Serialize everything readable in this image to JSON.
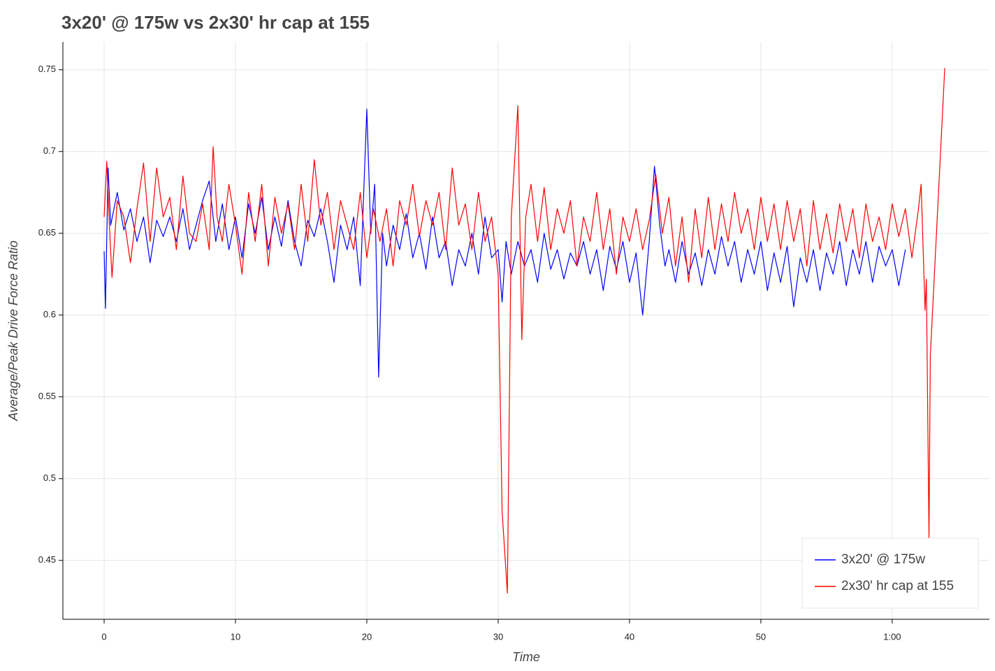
{
  "chart_data": {
    "type": "line",
    "title": "3x20' @ 175w vs 2x30' hr cap at 155",
    "x_label": "Time",
    "y_label": "Average/Peak Drive Force Ratio",
    "xlim": [
      -3.14,
      67.4
    ],
    "ylim": [
      0.414,
      0.767
    ],
    "xticks": [
      0,
      10,
      20,
      30,
      40,
      50,
      {
        "value": 60,
        "label": "1:00"
      }
    ],
    "yticks": [
      0.45,
      0.5,
      0.55,
      0.6,
      0.65,
      0.7,
      0.75
    ],
    "grid": true,
    "legend": "bottom-right",
    "series": [
      {
        "name": "3x20' @ 175w",
        "color": "#0000ff",
        "x": [
          0,
          0.1,
          0.3,
          0.5,
          1,
          1.5,
          2,
          2.5,
          3,
          3.5,
          4,
          4.5,
          5,
          5.5,
          6,
          6.5,
          7,
          7.5,
          8,
          8.5,
          9,
          9.5,
          10,
          10.5,
          11,
          11.5,
          12,
          12.5,
          13,
          13.5,
          14,
          14.5,
          15,
          15.5,
          16,
          16.5,
          17,
          17.5,
          18,
          18.5,
          19,
          19.5,
          20,
          20.3,
          20.6,
          20.9,
          21.2,
          21.5,
          22,
          22.5,
          23,
          23.5,
          24,
          24.5,
          25,
          25.5,
          26,
          26.5,
          27,
          27.5,
          28,
          28.5,
          29,
          29.5,
          30,
          30.3,
          30.6,
          31,
          31.5,
          32,
          32.5,
          33,
          33.5,
          34,
          34.5,
          35,
          35.5,
          36,
          36.5,
          37,
          37.5,
          38,
          38.5,
          39,
          39.5,
          40,
          40.5,
          41,
          41.5,
          41.9,
          42.3,
          42.7,
          43,
          43.5,
          44,
          44.5,
          45,
          45.5,
          46,
          46.5,
          47,
          47.5,
          48,
          48.5,
          49,
          49.5,
          50,
          50.5,
          51,
          51.5,
          52,
          52.5,
          53,
          53.5,
          54,
          54.5,
          55,
          55.5,
          56,
          56.5,
          57,
          57.5,
          58,
          58.5,
          59,
          59.5,
          60,
          60.5,
          61
        ],
        "values": [
          0.639,
          0.604,
          0.69,
          0.655,
          0.675,
          0.652,
          0.665,
          0.645,
          0.66,
          0.632,
          0.658,
          0.648,
          0.66,
          0.645,
          0.665,
          0.64,
          0.655,
          0.67,
          0.682,
          0.645,
          0.668,
          0.64,
          0.66,
          0.635,
          0.668,
          0.65,
          0.672,
          0.64,
          0.66,
          0.642,
          0.67,
          0.645,
          0.63,
          0.658,
          0.648,
          0.665,
          0.645,
          0.62,
          0.655,
          0.64,
          0.66,
          0.618,
          0.726,
          0.65,
          0.68,
          0.562,
          0.65,
          0.63,
          0.655,
          0.64,
          0.662,
          0.635,
          0.65,
          0.628,
          0.66,
          0.635,
          0.645,
          0.618,
          0.64,
          0.63,
          0.65,
          0.625,
          0.66,
          0.635,
          0.64,
          0.608,
          0.645,
          0.625,
          0.645,
          0.63,
          0.64,
          0.62,
          0.65,
          0.628,
          0.64,
          0.622,
          0.638,
          0.63,
          0.645,
          0.625,
          0.64,
          0.615,
          0.642,
          0.628,
          0.645,
          0.62,
          0.638,
          0.6,
          0.645,
          0.691,
          0.655,
          0.63,
          0.64,
          0.62,
          0.645,
          0.625,
          0.638,
          0.618,
          0.64,
          0.625,
          0.648,
          0.63,
          0.645,
          0.62,
          0.64,
          0.625,
          0.645,
          0.615,
          0.638,
          0.62,
          0.642,
          0.605,
          0.635,
          0.62,
          0.64,
          0.615,
          0.638,
          0.625,
          0.645,
          0.618,
          0.64,
          0.625,
          0.645,
          0.62,
          0.642,
          0.63,
          0.64,
          0.618,
          0.64
        ]
      },
      {
        "name": "2x30' hr cap at 155",
        "color": "#ff0000",
        "x": [
          0,
          0.2,
          0.4,
          0.6,
          1,
          1.5,
          2,
          2.5,
          3,
          3.5,
          4,
          4.5,
          5,
          5.5,
          6,
          6.5,
          7,
          7.5,
          8,
          8.3,
          8.6,
          9,
          9.5,
          10,
          10.5,
          11,
          11.5,
          12,
          12.5,
          13,
          13.5,
          14,
          14.5,
          15,
          15.5,
          16,
          16.5,
          17,
          17.5,
          18,
          18.5,
          19,
          19.5,
          20,
          20.5,
          21,
          21.5,
          22,
          22.5,
          23,
          23.5,
          24,
          24.5,
          25,
          25.5,
          26,
          26.5,
          27,
          27.5,
          28,
          28.5,
          29,
          29.5,
          30,
          30.3,
          30.7,
          31,
          31.5,
          31.8,
          32.1,
          32.5,
          33,
          33.5,
          34,
          34.5,
          35,
          35.5,
          36,
          36.5,
          37,
          37.5,
          38,
          38.5,
          39,
          39.5,
          40,
          40.5,
          41,
          41.5,
          42,
          42.5,
          43,
          43.5,
          44,
          44.5,
          45,
          45.5,
          46,
          46.5,
          47,
          47.5,
          48,
          48.5,
          49,
          49.5,
          50,
          50.5,
          51,
          51.5,
          52,
          52.5,
          53,
          53.5,
          54,
          54.5,
          55,
          55.5,
          56,
          56.5,
          57,
          57.5,
          58,
          58.5,
          59,
          59.5,
          60,
          60.5,
          61,
          61.5,
          62,
          62.2,
          62.5,
          62.6,
          62.8,
          62.9,
          64
        ],
        "values": [
          0.66,
          0.694,
          0.655,
          0.623,
          0.67,
          0.66,
          0.632,
          0.665,
          0.693,
          0.645,
          0.69,
          0.66,
          0.672,
          0.64,
          0.685,
          0.65,
          0.645,
          0.668,
          0.64,
          0.703,
          0.66,
          0.645,
          0.68,
          0.655,
          0.625,
          0.675,
          0.645,
          0.68,
          0.63,
          0.672,
          0.65,
          0.668,
          0.64,
          0.68,
          0.645,
          0.695,
          0.655,
          0.675,
          0.64,
          0.67,
          0.655,
          0.64,
          0.675,
          0.635,
          0.665,
          0.645,
          0.665,
          0.63,
          0.67,
          0.655,
          0.68,
          0.648,
          0.67,
          0.655,
          0.675,
          0.64,
          0.69,
          0.655,
          0.668,
          0.64,
          0.675,
          0.645,
          0.66,
          0.625,
          0.48,
          0.43,
          0.66,
          0.728,
          0.585,
          0.66,
          0.68,
          0.645,
          0.678,
          0.64,
          0.665,
          0.65,
          0.67,
          0.63,
          0.66,
          0.645,
          0.675,
          0.64,
          0.665,
          0.625,
          0.66,
          0.645,
          0.665,
          0.64,
          0.658,
          0.686,
          0.65,
          0.672,
          0.63,
          0.66,
          0.62,
          0.665,
          0.635,
          0.672,
          0.64,
          0.668,
          0.645,
          0.675,
          0.65,
          0.665,
          0.64,
          0.672,
          0.645,
          0.668,
          0.64,
          0.67,
          0.645,
          0.665,
          0.63,
          0.67,
          0.64,
          0.662,
          0.638,
          0.668,
          0.645,
          0.665,
          0.635,
          0.668,
          0.645,
          0.66,
          0.64,
          0.668,
          0.648,
          0.665,
          0.635,
          0.665,
          0.68,
          0.603,
          0.622,
          0.463,
          0.575,
          0.751
        ]
      }
    ]
  }
}
